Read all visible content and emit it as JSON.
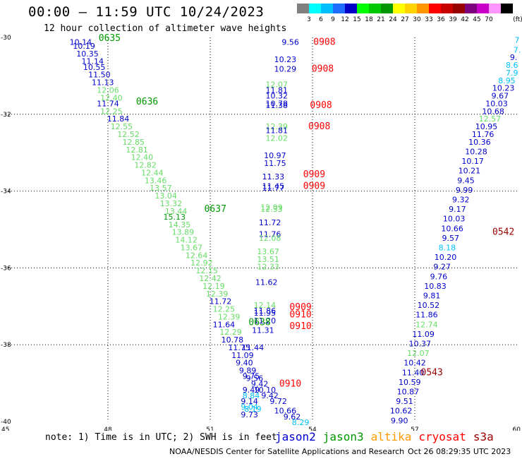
{
  "title": "00:00 – 11:59 UTC 10/24/2023",
  "subtitle": "12 hour collection of altimeter wave heights",
  "note": "note: 1) Time is in UTC; 2) SWH is in feet",
  "credit": "NOAA/NESDIS Center for Satellite Applications and Research",
  "stamp": "Oct 26 08:29:35 UTC 2023",
  "scale": {
    "unit": "(ft)",
    "colors": [
      "#808080",
      "#00ffff",
      "#00bfff",
      "#1e6bff",
      "#0000c8",
      "#00ff00",
      "#00c800",
      "#009600",
      "#ffff00",
      "#ffd200",
      "#ff9600",
      "#ff0000",
      "#c80000",
      "#960000",
      "#7d007d",
      "#c800c8",
      "#ff96ff",
      "#000000"
    ],
    "labels": [
      "3",
      "6",
      "9",
      "12",
      "15",
      "18",
      "21",
      "24",
      "27",
      "30",
      "33",
      "36",
      "39",
      "42",
      "45",
      "70"
    ]
  },
  "satellites": [
    {
      "name": "jason2",
      "color": "#0000cc"
    },
    {
      "name": "jason3",
      "color": "#009900"
    },
    {
      "name": "altika",
      "color": "#ff9900"
    },
    {
      "name": "cryosat",
      "color": "#ff0000"
    },
    {
      "name": "s3a",
      "color": "#990000"
    }
  ],
  "chart_data": {
    "type": "scatter",
    "xlim": [
      45,
      60
    ],
    "ylim": [
      -40,
      -30
    ],
    "x_ticks": [
      "45",
      "48",
      "51",
      "54",
      "57",
      "60"
    ],
    "y_ticks": [
      "-30",
      "-32",
      "-34",
      "-36",
      "-38",
      "-40"
    ],
    "grid": true,
    "points": [
      {
        "x": 47.2,
        "y": -30.1,
        "v": "10.14",
        "c": "#0000cc"
      },
      {
        "x": 47.3,
        "y": -30.2,
        "v": "10.19",
        "c": "#0000cc"
      },
      {
        "x": 47.4,
        "y": -30.4,
        "v": "10.35",
        "c": "#0000cc"
      },
      {
        "x": 47.55,
        "y": -30.6,
        "v": "11.14",
        "c": "#0000cc"
      },
      {
        "x": 47.6,
        "y": -30.75,
        "v": "10.55",
        "c": "#0000cc"
      },
      {
        "x": 47.75,
        "y": -30.95,
        "v": "11.50",
        "c": "#0000cc"
      },
      {
        "x": 47.85,
        "y": -31.15,
        "v": "11.13",
        "c": "#0000cc"
      },
      {
        "x": 48.0,
        "y": -31.35,
        "v": "12.06",
        "c": "#66dd66"
      },
      {
        "x": 48.1,
        "y": -31.55,
        "v": "12.40",
        "c": "#66dd66"
      },
      {
        "x": 48.0,
        "y": -31.7,
        "v": "11.74",
        "c": "#0000cc"
      },
      {
        "x": 48.1,
        "y": -31.9,
        "v": "12.25",
        "c": "#66dd66"
      },
      {
        "x": 48.3,
        "y": -32.1,
        "v": "11.84",
        "c": "#0000cc"
      },
      {
        "x": 48.4,
        "y": -32.3,
        "v": "12.55",
        "c": "#66dd66"
      },
      {
        "x": 48.6,
        "y": -32.5,
        "v": "12.52",
        "c": "#66dd66"
      },
      {
        "x": 48.75,
        "y": -32.7,
        "v": "12.85",
        "c": "#66dd66"
      },
      {
        "x": 48.85,
        "y": -32.9,
        "v": "12.81",
        "c": "#66dd66"
      },
      {
        "x": 49.0,
        "y": -33.1,
        "v": "12.40",
        "c": "#66dd66"
      },
      {
        "x": 49.1,
        "y": -33.3,
        "v": "12.82",
        "c": "#66dd66"
      },
      {
        "x": 49.3,
        "y": -33.5,
        "v": "12.44",
        "c": "#66dd66"
      },
      {
        "x": 49.4,
        "y": -33.7,
        "v": "13.46",
        "c": "#66dd66"
      },
      {
        "x": 49.55,
        "y": -33.9,
        "v": "13.57",
        "c": "#66dd66"
      },
      {
        "x": 49.7,
        "y": -34.1,
        "v": "13.04",
        "c": "#66dd66"
      },
      {
        "x": 49.85,
        "y": -34.3,
        "v": "13.32",
        "c": "#66dd66"
      },
      {
        "x": 50.0,
        "y": -34.5,
        "v": "13.44",
        "c": "#66dd66"
      },
      {
        "x": 49.95,
        "y": -34.65,
        "v": "15.13",
        "c": "#009900"
      },
      {
        "x": 50.1,
        "y": -34.85,
        "v": "14.35",
        "c": "#66dd66"
      },
      {
        "x": 50.2,
        "y": -35.05,
        "v": "13.89",
        "c": "#66dd66"
      },
      {
        "x": 50.3,
        "y": -35.25,
        "v": "14.12",
        "c": "#66dd66"
      },
      {
        "x": 50.45,
        "y": -35.45,
        "v": "13.67",
        "c": "#66dd66"
      },
      {
        "x": 50.6,
        "y": -35.65,
        "v": "12.64",
        "c": "#66dd66"
      },
      {
        "x": 50.75,
        "y": -35.85,
        "v": "12.92",
        "c": "#66dd66"
      },
      {
        "x": 50.9,
        "y": -36.05,
        "v": "12.15",
        "c": "#66dd66"
      },
      {
        "x": 51.0,
        "y": -36.25,
        "v": "12.42",
        "c": "#66dd66"
      },
      {
        "x": 51.1,
        "y": -36.45,
        "v": "12.19",
        "c": "#66dd66"
      },
      {
        "x": 51.2,
        "y": -36.65,
        "v": "12.39",
        "c": "#66dd66"
      },
      {
        "x": 51.3,
        "y": -36.85,
        "v": "11.72",
        "c": "#0000cc"
      },
      {
        "x": 51.4,
        "y": -37.05,
        "v": "12.25",
        "c": "#66dd66"
      },
      {
        "x": 51.55,
        "y": -37.25,
        "v": "12.39",
        "c": "#66dd66"
      },
      {
        "x": 51.4,
        "y": -37.45,
        "v": "11.64",
        "c": "#0000cc"
      },
      {
        "x": 51.6,
        "y": -37.65,
        "v": "12.29",
        "c": "#66dd66"
      },
      {
        "x": 51.65,
        "y": -37.85,
        "v": "10.78",
        "c": "#0000cc"
      },
      {
        "x": 51.85,
        "y": -38.05,
        "v": "11.75",
        "c": "#0000cc"
      },
      {
        "x": 52.25,
        "y": -38.05,
        "v": "11.44",
        "c": "#0000cc"
      },
      {
        "x": 51.95,
        "y": -38.25,
        "v": "11.09",
        "c": "#0000cc"
      },
      {
        "x": 52.0,
        "y": -38.45,
        "v": "9.40",
        "c": "#0000cc"
      },
      {
        "x": 52.1,
        "y": -38.65,
        "v": "9.89",
        "c": "#0000cc"
      },
      {
        "x": 52.2,
        "y": -38.8,
        "v": "9.75",
        "c": "#0000cc"
      },
      {
        "x": 52.3,
        "y": -38.85,
        "v": "9.56",
        "c": "#0000cc"
      },
      {
        "x": 52.45,
        "y": -39.0,
        "v": "9.42",
        "c": "#0000cc"
      },
      {
        "x": 52.2,
        "y": -39.15,
        "v": "9.49",
        "c": "#0000cc"
      },
      {
        "x": 52.6,
        "y": -39.15,
        "v": "10.10",
        "c": "#0000cc"
      },
      {
        "x": 52.2,
        "y": -39.3,
        "v": "8.84",
        "c": "#00bfff"
      },
      {
        "x": 52.75,
        "y": -39.3,
        "v": "9.42",
        "c": "#0000cc"
      },
      {
        "x": 52.15,
        "y": -39.45,
        "v": "9.14",
        "c": "#0000cc"
      },
      {
        "x": 52.15,
        "y": -39.6,
        "v": "9.04",
        "c": "#00bfff"
      },
      {
        "x": 52.25,
        "y": -39.65,
        "v": "8.19",
        "c": "#00bfff"
      },
      {
        "x": 53.0,
        "y": -39.45,
        "v": "9.72",
        "c": "#0000cc"
      },
      {
        "x": 52.15,
        "y": -39.8,
        "v": "9.73",
        "c": "#0000cc"
      },
      {
        "x": 53.2,
        "y": -39.7,
        "v": "10.66",
        "c": "#0000cc"
      },
      {
        "x": 53.4,
        "y": -39.85,
        "v": "9.62",
        "c": "#0000cc"
      },
      {
        "x": 53.65,
        "y": -40.0,
        "v": "8.29",
        "c": "#00bfff"
      },
      {
        "x": 53.35,
        "y": -30.1,
        "v": "9.56",
        "c": "#0000cc"
      },
      {
        "x": 53.2,
        "y": -30.55,
        "v": "10.23",
        "c": "#0000cc"
      },
      {
        "x": 53.2,
        "y": -30.8,
        "v": "10.29",
        "c": "#0000cc"
      },
      {
        "x": 52.95,
        "y": -31.2,
        "v": "12.07",
        "c": "#66dd66"
      },
      {
        "x": 52.95,
        "y": -31.35,
        "v": "11.81",
        "c": "#0000cc"
      },
      {
        "x": 52.95,
        "y": -31.5,
        "v": "10.32",
        "c": "#0000cc"
      },
      {
        "x": 52.95,
        "y": -31.7,
        "v": "10.78",
        "c": "#0000cc"
      },
      {
        "x": 52.95,
        "y": -31.75,
        "v": "11.38",
        "c": "#0000cc"
      },
      {
        "x": 52.95,
        "y": -32.3,
        "v": "12.39",
        "c": "#66dd66"
      },
      {
        "x": 52.95,
        "y": -32.4,
        "v": "11.81",
        "c": "#0000cc"
      },
      {
        "x": 52.95,
        "y": -32.6,
        "v": "12.02",
        "c": "#66dd66"
      },
      {
        "x": 52.9,
        "y": -33.05,
        "v": "10.97",
        "c": "#0000cc"
      },
      {
        "x": 52.9,
        "y": -33.25,
        "v": "11.75",
        "c": "#0000cc"
      },
      {
        "x": 52.85,
        "y": -33.6,
        "v": "11.33",
        "c": "#0000cc"
      },
      {
        "x": 52.85,
        "y": -33.85,
        "v": "11.45",
        "c": "#0000cc"
      },
      {
        "x": 52.85,
        "y": -33.9,
        "v": "11.77",
        "c": "#0000cc"
      },
      {
        "x": 52.8,
        "y": -34.4,
        "v": "12.09",
        "c": "#66dd66"
      },
      {
        "x": 52.8,
        "y": -34.45,
        "v": "12.33",
        "c": "#66dd66"
      },
      {
        "x": 52.75,
        "y": -34.8,
        "v": "11.72",
        "c": "#0000cc"
      },
      {
        "x": 52.75,
        "y": -35.1,
        "v": "11.76",
        "c": "#0000cc"
      },
      {
        "x": 52.75,
        "y": -35.2,
        "v": "12.08",
        "c": "#66dd66"
      },
      {
        "x": 52.7,
        "y": -35.55,
        "v": "13.67",
        "c": "#66dd66"
      },
      {
        "x": 52.7,
        "y": -35.75,
        "v": "13.51",
        "c": "#66dd66"
      },
      {
        "x": 52.7,
        "y": -35.95,
        "v": "12.33",
        "c": "#66dd66"
      },
      {
        "x": 52.65,
        "y": -36.35,
        "v": "11.62",
        "c": "#0000cc"
      },
      {
        "x": 52.6,
        "y": -36.95,
        "v": "12.14",
        "c": "#66dd66"
      },
      {
        "x": 52.6,
        "y": -37.1,
        "v": "11.86",
        "c": "#0000cc"
      },
      {
        "x": 52.6,
        "y": -37.15,
        "v": "11.95",
        "c": "#0000cc"
      },
      {
        "x": 52.6,
        "y": -37.35,
        "v": "11.20",
        "c": "#0000cc"
      },
      {
        "x": 52.55,
        "y": -37.6,
        "v": "11.31",
        "c": "#0000cc"
      },
      {
        "x": 60.0,
        "y": -30.05,
        "v": "7",
        "c": "#00bfff"
      },
      {
        "x": 60.0,
        "y": -30.3,
        "v": "7.",
        "c": "#00bfff"
      },
      {
        "x": 59.9,
        "y": -30.5,
        "v": "9.",
        "c": "#0000cc"
      },
      {
        "x": 59.85,
        "y": -30.7,
        "v": "8.6",
        "c": "#00bfff"
      },
      {
        "x": 59.85,
        "y": -30.9,
        "v": "7.9",
        "c": "#00bfff"
      },
      {
        "x": 59.7,
        "y": -31.1,
        "v": "8.95",
        "c": "#00bfff"
      },
      {
        "x": 59.6,
        "y": -31.3,
        "v": "10.23",
        "c": "#0000cc"
      },
      {
        "x": 59.5,
        "y": -31.5,
        "v": "9.67",
        "c": "#0000cc"
      },
      {
        "x": 59.4,
        "y": -31.7,
        "v": "10.03",
        "c": "#0000cc"
      },
      {
        "x": 59.3,
        "y": -31.9,
        "v": "10.68",
        "c": "#0000cc"
      },
      {
        "x": 59.2,
        "y": -32.1,
        "v": "12.57",
        "c": "#66dd66"
      },
      {
        "x": 59.1,
        "y": -32.3,
        "v": "10.95",
        "c": "#0000cc"
      },
      {
        "x": 59.0,
        "y": -32.5,
        "v": "11.76",
        "c": "#0000cc"
      },
      {
        "x": 58.9,
        "y": -32.7,
        "v": "10.36",
        "c": "#0000cc"
      },
      {
        "x": 58.8,
        "y": -32.95,
        "v": "10.28",
        "c": "#0000cc"
      },
      {
        "x": 58.7,
        "y": -33.2,
        "v": "10.17",
        "c": "#0000cc"
      },
      {
        "x": 58.6,
        "y": -33.45,
        "v": "10.21",
        "c": "#0000cc"
      },
      {
        "x": 58.5,
        "y": -33.7,
        "v": "9.45",
        "c": "#0000cc"
      },
      {
        "x": 58.45,
        "y": -33.95,
        "v": "9.99",
        "c": "#0000cc"
      },
      {
        "x": 58.35,
        "y": -34.2,
        "v": "9.32",
        "c": "#0000cc"
      },
      {
        "x": 58.25,
        "y": -34.45,
        "v": "9.17",
        "c": "#0000cc"
      },
      {
        "x": 58.15,
        "y": -34.7,
        "v": "10.03",
        "c": "#0000cc"
      },
      {
        "x": 58.1,
        "y": -34.95,
        "v": "10.66",
        "c": "#0000cc"
      },
      {
        "x": 58.05,
        "y": -35.2,
        "v": "9.57",
        "c": "#0000cc"
      },
      {
        "x": 57.95,
        "y": -35.45,
        "v": "8.18",
        "c": "#00bfff"
      },
      {
        "x": 57.9,
        "y": -35.7,
        "v": "10.20",
        "c": "#0000cc"
      },
      {
        "x": 57.8,
        "y": -35.95,
        "v": "9.27",
        "c": "#0000cc"
      },
      {
        "x": 57.7,
        "y": -36.2,
        "v": "9.76",
        "c": "#0000cc"
      },
      {
        "x": 57.6,
        "y": -36.45,
        "v": "10.83",
        "c": "#0000cc"
      },
      {
        "x": 57.5,
        "y": -36.7,
        "v": "9.81",
        "c": "#0000cc"
      },
      {
        "x": 57.4,
        "y": -36.95,
        "v": "10.52",
        "c": "#0000cc"
      },
      {
        "x": 57.35,
        "y": -37.2,
        "v": "11.86",
        "c": "#0000cc"
      },
      {
        "x": 57.35,
        "y": -37.45,
        "v": "12.74",
        "c": "#66dd66"
      },
      {
        "x": 57.25,
        "y": -37.7,
        "v": "11.09",
        "c": "#0000cc"
      },
      {
        "x": 57.15,
        "y": -37.95,
        "v": "10.37",
        "c": "#0000cc"
      },
      {
        "x": 57.1,
        "y": -38.2,
        "v": "12.07",
        "c": "#66dd66"
      },
      {
        "x": 57.0,
        "y": -38.45,
        "v": "10.42",
        "c": "#0000cc"
      },
      {
        "x": 56.95,
        "y": -38.7,
        "v": "11.40",
        "c": "#0000cc"
      },
      {
        "x": 56.85,
        "y": -38.95,
        "v": "10.59",
        "c": "#0000cc"
      },
      {
        "x": 56.8,
        "y": -39.2,
        "v": "10.87",
        "c": "#0000cc"
      },
      {
        "x": 56.7,
        "y": -39.45,
        "v": "9.51",
        "c": "#0000cc"
      },
      {
        "x": 56.6,
        "y": -39.7,
        "v": "10.62",
        "c": "#0000cc"
      },
      {
        "x": 56.55,
        "y": -39.95,
        "v": "9.90",
        "c": "#0000cc"
      }
    ],
    "time_labels": [
      {
        "x": 48.05,
        "y": -30.0,
        "v": "0635",
        "c": "#009900"
      },
      {
        "x": 49.15,
        "y": -31.65,
        "v": "0636",
        "c": "#009900"
      },
      {
        "x": 51.15,
        "y": -34.45,
        "v": "0637",
        "c": "#009900"
      },
      {
        "x": 52.45,
        "y": -37.4,
        "v": "0638",
        "c": "#009900"
      },
      {
        "x": 54.35,
        "y": -30.1,
        "v": "0908",
        "c": "#ff0000"
      },
      {
        "x": 54.3,
        "y": -30.8,
        "v": "0908",
        "c": "#ff0000"
      },
      {
        "x": 54.25,
        "y": -31.75,
        "v": "0908",
        "c": "#ff0000"
      },
      {
        "x": 54.2,
        "y": -32.3,
        "v": "0908",
        "c": "#ff0000"
      },
      {
        "x": 54.05,
        "y": -33.55,
        "v": "0909",
        "c": "#ff0000"
      },
      {
        "x": 54.05,
        "y": -33.85,
        "v": "0909",
        "c": "#ff0000"
      },
      {
        "x": 53.65,
        "y": -37.0,
        "v": "0909",
        "c": "#ff0000"
      },
      {
        "x": 53.65,
        "y": -37.2,
        "v": "0910",
        "c": "#ff0000"
      },
      {
        "x": 53.65,
        "y": -37.5,
        "v": "0910",
        "c": "#ff0000"
      },
      {
        "x": 53.35,
        "y": -39.0,
        "v": "0910",
        "c": "#ff0000"
      },
      {
        "x": 59.6,
        "y": -35.05,
        "v": "0542",
        "c": "#990000"
      },
      {
        "x": 57.5,
        "y": -38.7,
        "v": "0543",
        "c": "#990000"
      }
    ]
  }
}
